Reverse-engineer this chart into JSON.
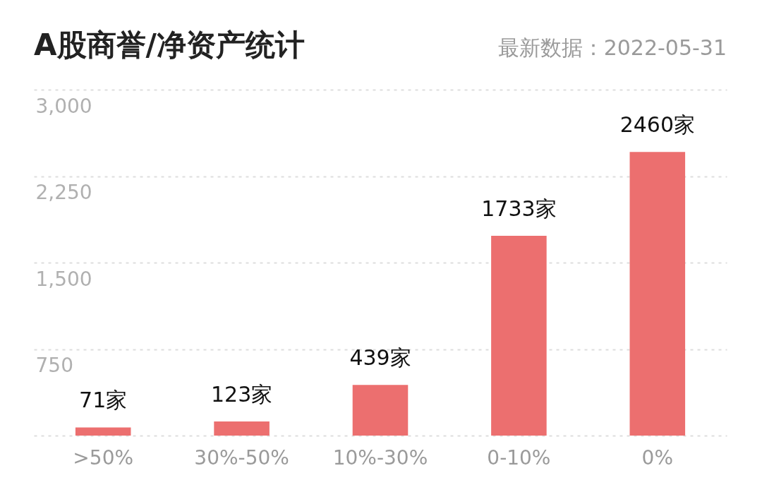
{
  "chart_data": {
    "type": "bar",
    "title": "A股商誉/净资产统计",
    "subtitle": "最新数据：2022-05-31",
    "categories": [
      ">50%",
      "30%-50%",
      "10%-30%",
      "0-10%",
      "0%"
    ],
    "values": [
      71,
      123,
      439,
      1733,
      2460
    ],
    "value_labels": [
      "71家",
      "123家",
      "439家",
      "1733家",
      "2460家"
    ],
    "color": "#ec6f6f",
    "ylim": [
      0,
      3000
    ],
    "yticks": [
      {
        "value": 0,
        "label": null
      },
      {
        "value": 750,
        "label": "750"
      },
      {
        "value": 1500,
        "label": "1,500"
      },
      {
        "value": 2250,
        "label": "2,250"
      },
      {
        "value": 3000,
        "label": "3,000"
      }
    ],
    "grid": true
  }
}
